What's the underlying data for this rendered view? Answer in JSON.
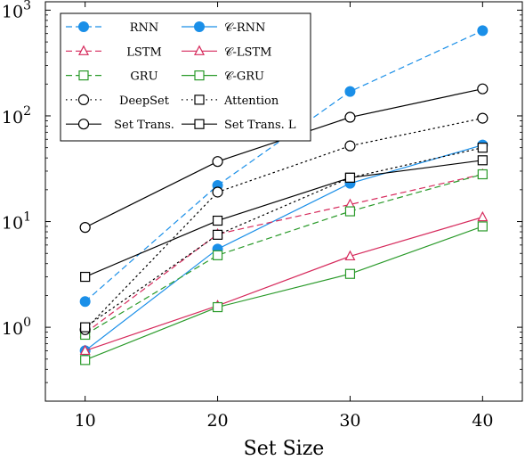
{
  "chart_data": {
    "type": "line",
    "title": "",
    "xlabel": "Set Size",
    "ylabel": "",
    "x": [
      10,
      20,
      30,
      40
    ],
    "xlim": [
      7,
      43
    ],
    "ylim": [
      0.2,
      1200
    ],
    "yscale": "log",
    "xticks": [
      "10",
      "20",
      "30",
      "40"
    ],
    "yticks": [
      {
        "base": "10",
        "exp": "0",
        "value": 1
      },
      {
        "base": "10",
        "exp": "1",
        "value": 10
      },
      {
        "base": "10",
        "exp": "2",
        "value": 100
      },
      {
        "base": "10",
        "exp": "3",
        "value": 1000
      }
    ],
    "grid": false,
    "legend_position": "top-left",
    "series": [
      {
        "name": "RNN",
        "values": [
          1.75,
          22,
          170,
          640
        ],
        "color": "#1a8fe8",
        "dash": "dashed",
        "marker": "filled-circle"
      },
      {
        "name": "𝒞-RNN",
        "values": [
          0.6,
          5.5,
          23,
          53
        ],
        "color": "#1a8fe8",
        "dash": "solid",
        "marker": "filled-circle"
      },
      {
        "name": "LSTM",
        "values": [
          0.88,
          7.6,
          14.5,
          28
        ],
        "color": "#d62a5c",
        "dash": "dashed",
        "marker": "triangle"
      },
      {
        "name": "𝒞-LSTM",
        "values": [
          0.6,
          1.6,
          4.7,
          11
        ],
        "color": "#d62a5c",
        "dash": "solid",
        "marker": "triangle"
      },
      {
        "name": "GRU",
        "values": [
          0.85,
          4.8,
          12.5,
          28
        ],
        "color": "#2a9a2a",
        "dash": "dashed",
        "marker": "square"
      },
      {
        "name": "𝒞-GRU",
        "values": [
          0.49,
          1.55,
          3.2,
          9
        ],
        "color": "#2a9a2a",
        "dash": "solid",
        "marker": "square"
      },
      {
        "name": "DeepSet",
        "values": [
          0.95,
          19,
          52,
          95
        ],
        "color": "#000000",
        "dash": "dotted",
        "marker": "circle"
      },
      {
        "name": "Attention",
        "values": [
          1.0,
          7.5,
          26,
          50
        ],
        "color": "#000000",
        "dash": "dotted",
        "marker": "square"
      },
      {
        "name": "Set Trans.",
        "values": [
          8.8,
          37,
          97,
          180
        ],
        "color": "#000000",
        "dash": "solid",
        "marker": "circle"
      },
      {
        "name": "Set Trans. L",
        "values": [
          3.0,
          10.2,
          26,
          38
        ],
        "color": "#000000",
        "dash": "solid",
        "marker": "square"
      }
    ]
  }
}
